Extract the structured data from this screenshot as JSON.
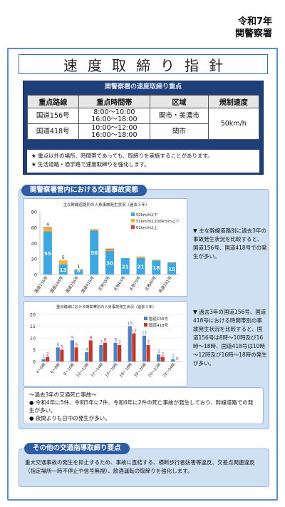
{
  "header": {
    "year": "令和7年",
    "station": "関警察署"
  },
  "title": "速度取締り指針",
  "focus": {
    "heading": "関警察署の速度取締り重点",
    "columns": [
      "重点路線",
      "重点時間帯",
      "区域",
      "規制速度"
    ],
    "rows": [
      {
        "route": "国道156号",
        "times": [
          "8:00～10:00",
          "16:00～18:00"
        ],
        "area": "関市・美濃市"
      },
      {
        "route": "国道418号",
        "times": [
          "10:00～12:00",
          "16:00～18:00"
        ],
        "area": "関市"
      }
    ],
    "speed": "50km/h",
    "notes": [
      "★ 重点以外の場所、時間帯であっても、取締りを実施することがあります。",
      "★ 生活道路・通学路で速度取締りを強化します。"
    ]
  },
  "accidents": {
    "heading": "関警察署管内における交通事故実態",
    "note1": "▼ 主な幹線道路別に過去3年の事故発生状況を比較すると、国道156号、国道418号での発生が多い。",
    "note2": "▼ 過去3年の国道156号、国道418号における時間帯別の事故発生状況を比較すると、国道156号は8時～10時及び16時～18時、国道418号は10時～12時及び16時～18時の発生が多い。",
    "summary_title": "～過去3年の交通死亡事故～",
    "summary_items": [
      "● 令和4年に5件、令和5年に7件、令和6年に2件の死亡事故が発生しており、幹線道路での発生が多い。",
      "● 夜間よりも日中の発生が多い。"
    ]
  },
  "other": {
    "heading": "その他の交通指導取締り要点",
    "text": "重大交通事故の発生を抑止するため、事故に直結する、横断歩行者妨害等違反、交差点関連違反（指定場所一時不停止や信号無視）、飲酒運転の取締りを強化します。"
  },
  "chart_data": [
    {
      "type": "bar",
      "title": "主な幹線道路別の人身事故発生状況（過去３年）",
      "categories": [
        "国道156号",
        "国道248号",
        "国道256号",
        "国道418号",
        "主地58号",
        "主地63号",
        "主地79号",
        "主地80号",
        "県道281号"
      ],
      "series": [
        {
          "name": "50km/h以下",
          "color": "#3ea6e0",
          "values": [
            55,
            13,
            6,
            56,
            30,
            21,
            21,
            18,
            15
          ]
        },
        {
          "name": "51km/h以上60km/h以下",
          "color": "#f2b233",
          "values": [
            4,
            5,
            1,
            2,
            2,
            0,
            2,
            1,
            1
          ]
        },
        {
          "name": "61km/h以上",
          "color": "#d9403a",
          "values": [
            1,
            0,
            0,
            0,
            1,
            0,
            0,
            0,
            0
          ]
        }
      ],
      "labels": [
        "55",
        "13",
        "6",
        "56",
        "30",
        "21",
        "21",
        "18",
        "15"
      ],
      "top_labels": [
        "4",
        "5",
        "1"
      ],
      "ylim": [
        0,
        80
      ],
      "yticks": [
        0,
        20,
        40,
        60,
        80
      ],
      "legend": "right"
    },
    {
      "type": "bar",
      "title": "重点路線における時間帯別の人身事故発生状況（過去３年）",
      "categories": [
        "4～6時",
        "6～8時",
        "8～10時",
        "10～12時",
        "12～14時",
        "14～16時",
        "16～18時",
        "18～20時",
        "20～22時",
        "22～24時"
      ],
      "series": [
        {
          "name": "国道156号",
          "color": "#4f7fbf",
          "values": [
            1,
            6,
            9,
            4,
            7,
            8,
            15,
            11,
            3,
            1
          ]
        },
        {
          "name": "国道418号",
          "color": "#c0392b",
          "values": [
            2,
            5,
            6,
            9,
            8,
            7,
            12,
            7,
            2,
            0
          ]
        }
      ],
      "ylim": [
        0,
        20
      ],
      "yticks": [
        0,
        5,
        10,
        15,
        20
      ],
      "legend": "top-right"
    }
  ]
}
